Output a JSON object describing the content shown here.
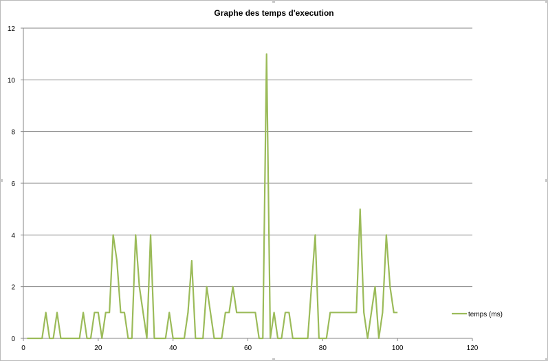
{
  "chart_data": {
    "type": "line",
    "title": "Graphe des temps d'execution",
    "xlabel": "",
    "ylabel": "",
    "xlim": [
      0,
      120
    ],
    "ylim": [
      0,
      12
    ],
    "x_ticks": [
      0,
      20,
      40,
      60,
      80,
      100,
      120
    ],
    "y_ticks": [
      0,
      2,
      4,
      6,
      8,
      10,
      12
    ],
    "grid": "horizontal",
    "legend_position": "right",
    "series": [
      {
        "name": "temps (ms)",
        "color": "#9bbb59",
        "x": [
          1,
          2,
          3,
          4,
          5,
          6,
          7,
          8,
          9,
          10,
          11,
          12,
          13,
          14,
          15,
          16,
          17,
          18,
          19,
          20,
          21,
          22,
          23,
          24,
          25,
          26,
          27,
          28,
          29,
          30,
          31,
          32,
          33,
          34,
          35,
          36,
          37,
          38,
          39,
          40,
          41,
          42,
          43,
          44,
          45,
          46,
          47,
          48,
          49,
          50,
          51,
          52,
          53,
          54,
          55,
          56,
          57,
          58,
          59,
          60,
          61,
          62,
          63,
          64,
          65,
          66,
          67,
          68,
          69,
          70,
          71,
          72,
          73,
          74,
          75,
          76,
          77,
          78,
          79,
          80,
          81,
          82,
          83,
          84,
          85,
          86,
          87,
          88,
          89,
          90,
          91,
          92,
          93,
          94,
          95,
          96,
          97,
          98,
          99,
          100
        ],
        "y": [
          0,
          0,
          0,
          0,
          0,
          1,
          0,
          0,
          1,
          0,
          0,
          0,
          0,
          0,
          0,
          1,
          0,
          0,
          1,
          1,
          0,
          1,
          1,
          4,
          3,
          1,
          1,
          0,
          0,
          4,
          2,
          1,
          0,
          4,
          0,
          0,
          0,
          0,
          1,
          0,
          0,
          0,
          0,
          1,
          3,
          0,
          0,
          0,
          2,
          1,
          0,
          0,
          0,
          1,
          1,
          2,
          1,
          1,
          1,
          1,
          1,
          1,
          0,
          0,
          11,
          0,
          1,
          0,
          0,
          1,
          1,
          0,
          0,
          0,
          0,
          0,
          2,
          4,
          0,
          0,
          0,
          1,
          1,
          1,
          1,
          1,
          1,
          1,
          1,
          5,
          1,
          0,
          1,
          2,
          0,
          1,
          4,
          2,
          1,
          1
        ]
      }
    ]
  }
}
